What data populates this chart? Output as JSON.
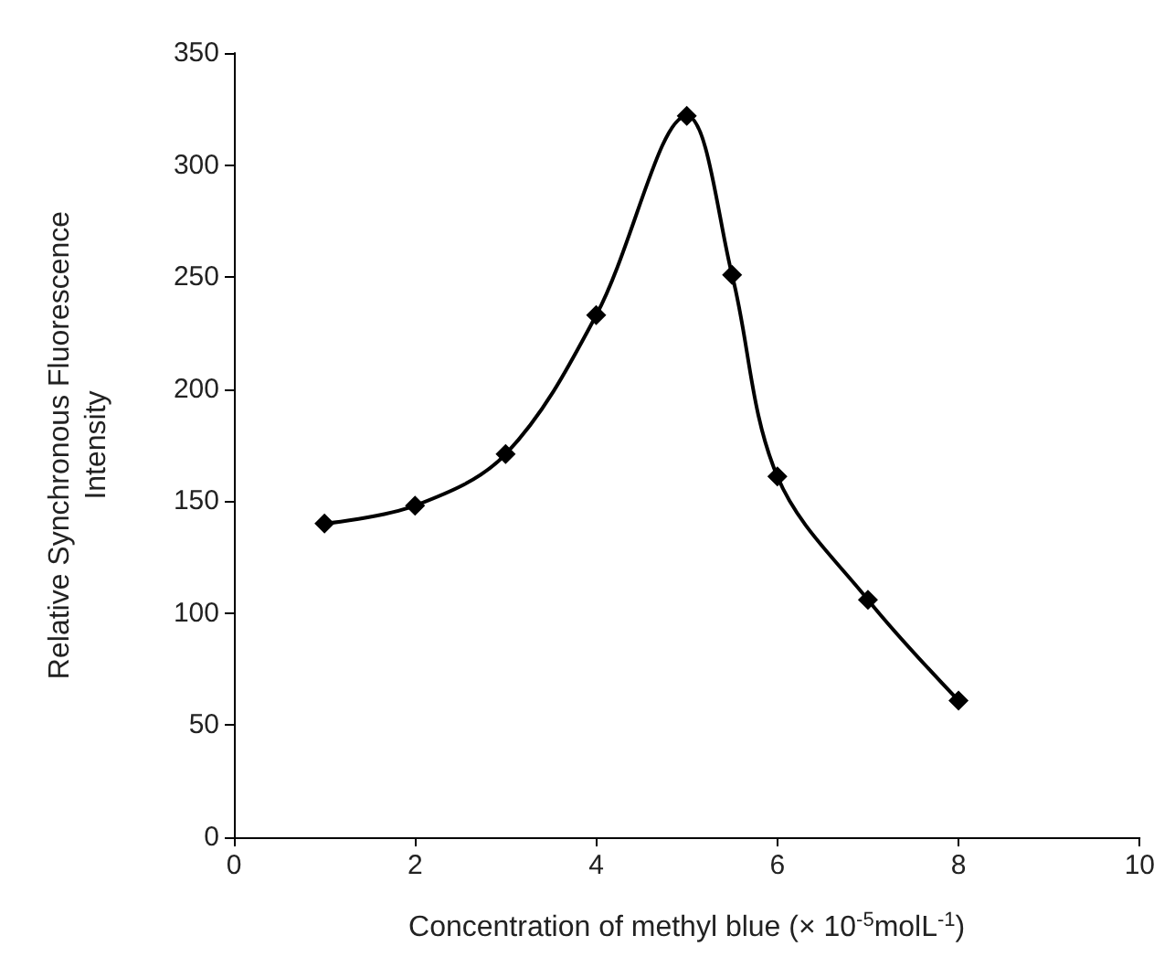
{
  "chart_data": {
    "type": "line",
    "xlabel": "Concentration of methyl blue (× 10$^{-5}$molL$^{-1}$)",
    "ylabel": "Relative Synchronous Fluorescence\nIntensity",
    "x": [
      1,
      2,
      3,
      4,
      5,
      5.5,
      6,
      7,
      8
    ],
    "series": [
      {
        "color": "#000000",
        "values": [
          140,
          148,
          171,
          233,
          322,
          251,
          161,
          106,
          61
        ]
      }
    ],
    "xlim": [
      0,
      10
    ],
    "xticks": [
      0,
      2,
      4,
      6,
      8,
      10
    ],
    "ylim": [
      0,
      350
    ],
    "yticks": [
      0,
      50,
      100,
      150,
      200,
      250,
      300,
      350
    ],
    "marker": "diamond",
    "line_style": "solid"
  }
}
